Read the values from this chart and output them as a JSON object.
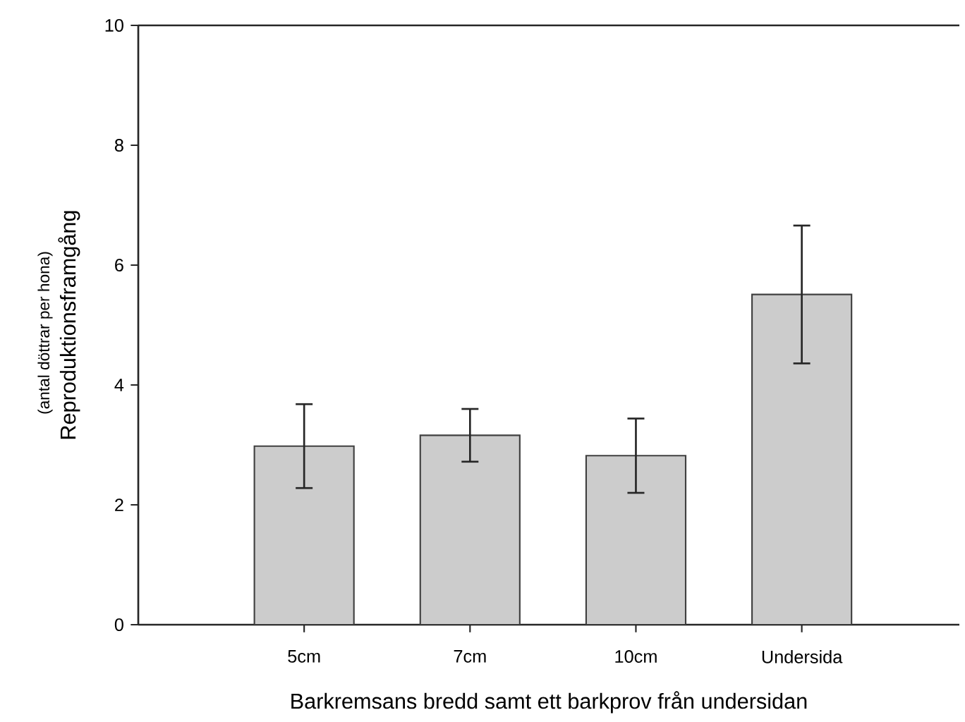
{
  "chart_data": {
    "type": "bar",
    "xlabel": "Barkremsans bredd samt ett barkprov från undersidan",
    "ylabel": "Reproduktionsframgång",
    "annotations": [
      "(antal döttrar per hona)"
    ],
    "categories": [
      "5cm",
      "7cm",
      "10cm",
      "Undersida"
    ],
    "values": [
      2.98,
      3.16,
      2.82,
      5.51
    ],
    "errors": [
      0.7,
      0.44,
      0.62,
      1.15
    ],
    "color": "#cccccc",
    "ylim": [
      0,
      10
    ],
    "yticks": [
      0,
      2,
      4,
      6,
      8,
      10
    ]
  }
}
